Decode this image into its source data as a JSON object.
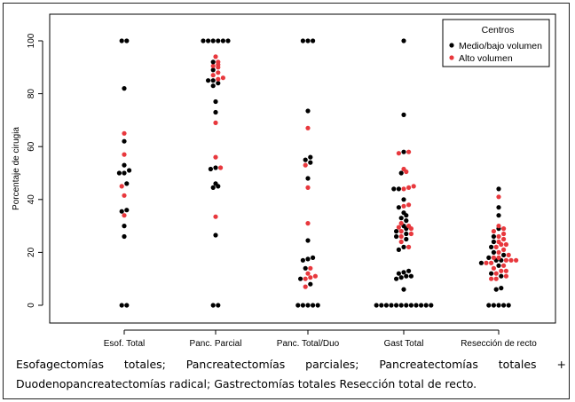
{
  "chart_data": {
    "type": "scatter",
    "ylabel": "Porcentaje de cirugia",
    "ylim": [
      0,
      100
    ],
    "yticks": [
      0,
      20,
      40,
      60,
      80,
      100
    ],
    "categories": [
      "Esof. Total",
      "Panc. Parcial",
      "Panc. Total/Duo",
      "Gast Total",
      "Resección de recto"
    ],
    "legend": {
      "title": "Centros",
      "placement": "top-right",
      "entries": [
        {
          "label": "Medio/bajo volumen",
          "color": "#000000"
        },
        {
          "label": "Alto volumen",
          "color": "#e8383d"
        }
      ]
    },
    "series": [
      {
        "name": "Medio/bajo volumen",
        "color": "#000000",
        "points": [
          [
            0,
            100
          ],
          [
            0,
            100
          ],
          [
            0,
            82
          ],
          [
            0,
            62
          ],
          [
            0,
            53
          ],
          [
            0,
            51
          ],
          [
            0,
            50
          ],
          [
            0,
            50
          ],
          [
            0,
            46
          ],
          [
            0,
            36
          ],
          [
            0,
            35.5
          ],
          [
            0,
            30
          ],
          [
            0,
            26
          ],
          [
            0,
            0
          ],
          [
            0,
            0
          ],
          [
            1,
            100
          ],
          [
            1,
            100
          ],
          [
            1,
            100
          ],
          [
            1,
            100
          ],
          [
            1,
            100
          ],
          [
            1,
            100
          ],
          [
            1,
            92
          ],
          [
            1,
            89
          ],
          [
            1,
            85
          ],
          [
            1,
            85
          ],
          [
            1,
            84
          ],
          [
            1,
            83
          ],
          [
            1,
            77
          ],
          [
            1,
            73
          ],
          [
            1,
            52
          ],
          [
            1,
            51.5
          ],
          [
            1,
            46
          ],
          [
            1,
            45
          ],
          [
            1,
            44.5
          ],
          [
            1,
            26.5
          ],
          [
            1,
            0
          ],
          [
            1,
            0
          ],
          [
            2,
            100
          ],
          [
            2,
            100
          ],
          [
            2,
            100
          ],
          [
            2,
            73.5
          ],
          [
            2,
            56
          ],
          [
            2,
            55
          ],
          [
            2,
            54
          ],
          [
            2,
            48
          ],
          [
            2,
            24.5
          ],
          [
            2,
            18
          ],
          [
            2,
            17.5
          ],
          [
            2,
            17
          ],
          [
            2,
            14
          ],
          [
            2,
            10
          ],
          [
            2,
            8
          ],
          [
            2,
            0
          ],
          [
            2,
            0
          ],
          [
            2,
            0
          ],
          [
            2,
            0
          ],
          [
            2,
            0
          ],
          [
            3,
            100
          ],
          [
            3,
            72
          ],
          [
            3,
            58
          ],
          [
            3,
            50
          ],
          [
            3,
            44
          ],
          [
            3,
            44
          ],
          [
            3,
            40
          ],
          [
            3,
            37
          ],
          [
            3,
            35
          ],
          [
            3,
            34
          ],
          [
            3,
            33
          ],
          [
            3,
            32
          ],
          [
            3,
            30
          ],
          [
            3,
            29
          ],
          [
            3,
            28
          ],
          [
            3,
            27
          ],
          [
            3,
            26
          ],
          [
            3,
            25
          ],
          [
            3,
            22
          ],
          [
            3,
            21
          ],
          [
            3,
            13
          ],
          [
            3,
            12.5
          ],
          [
            3,
            12
          ],
          [
            3,
            11
          ],
          [
            3,
            11
          ],
          [
            3,
            10.5
          ],
          [
            3,
            10
          ],
          [
            3,
            6
          ],
          [
            3,
            0
          ],
          [
            3,
            0
          ],
          [
            3,
            0
          ],
          [
            3,
            0
          ],
          [
            3,
            0
          ],
          [
            3,
            0
          ],
          [
            3,
            0
          ],
          [
            3,
            0
          ],
          [
            3,
            0
          ],
          [
            3,
            0
          ],
          [
            3,
            0
          ],
          [
            3,
            0
          ],
          [
            4,
            44
          ],
          [
            4,
            37
          ],
          [
            4,
            34
          ],
          [
            4,
            29
          ],
          [
            4,
            26
          ],
          [
            4,
            24
          ],
          [
            4,
            22
          ],
          [
            4,
            20
          ],
          [
            4,
            19
          ],
          [
            4,
            18
          ],
          [
            4,
            17
          ],
          [
            4,
            17
          ],
          [
            4,
            16
          ],
          [
            4,
            15
          ],
          [
            4,
            12
          ],
          [
            4,
            11
          ],
          [
            4,
            6.5
          ],
          [
            4,
            6
          ],
          [
            4,
            0
          ],
          [
            4,
            0
          ],
          [
            4,
            0
          ],
          [
            4,
            0
          ],
          [
            4,
            0
          ]
        ]
      },
      {
        "name": "Alto volumen",
        "color": "#e8383d",
        "points": [
          [
            0,
            65
          ],
          [
            0,
            57
          ],
          [
            0,
            45
          ],
          [
            0,
            41.5
          ],
          [
            0,
            34
          ],
          [
            1,
            94
          ],
          [
            1,
            92
          ],
          [
            1,
            91
          ],
          [
            1,
            90.5
          ],
          [
            1,
            90
          ],
          [
            1,
            88
          ],
          [
            1,
            87
          ],
          [
            1,
            86
          ],
          [
            1,
            85.5
          ],
          [
            1,
            69
          ],
          [
            1,
            56
          ],
          [
            1,
            52
          ],
          [
            1,
            33.5
          ],
          [
            2,
            67
          ],
          [
            2,
            53
          ],
          [
            2,
            44.5
          ],
          [
            2,
            31
          ],
          [
            2,
            14
          ],
          [
            2,
            12
          ],
          [
            2,
            11
          ],
          [
            2,
            10.5
          ],
          [
            2,
            10
          ],
          [
            2,
            7
          ],
          [
            3,
            58
          ],
          [
            3,
            57.5
          ],
          [
            3,
            51.5
          ],
          [
            3,
            50.5
          ],
          [
            3,
            45
          ],
          [
            3,
            44.5
          ],
          [
            3,
            44
          ],
          [
            3,
            38
          ],
          [
            3,
            37.5
          ],
          [
            3,
            31
          ],
          [
            3,
            30
          ],
          [
            3,
            29.5
          ],
          [
            3,
            29
          ],
          [
            3,
            28
          ],
          [
            3,
            27
          ],
          [
            3,
            26
          ],
          [
            3,
            24
          ],
          [
            3,
            22
          ],
          [
            4,
            41
          ],
          [
            4,
            30
          ],
          [
            4,
            29
          ],
          [
            4,
            28
          ],
          [
            4,
            27
          ],
          [
            4,
            26
          ],
          [
            4,
            25
          ],
          [
            4,
            24
          ],
          [
            4,
            23
          ],
          [
            4,
            23
          ],
          [
            4,
            22
          ],
          [
            4,
            21
          ],
          [
            4,
            20
          ],
          [
            4,
            19
          ],
          [
            4,
            18
          ],
          [
            4,
            18
          ],
          [
            4,
            17
          ],
          [
            4,
            17
          ],
          [
            4,
            17
          ],
          [
            4,
            16
          ],
          [
            4,
            16
          ],
          [
            4,
            15
          ],
          [
            4,
            14
          ],
          [
            4,
            13
          ],
          [
            4,
            13
          ],
          [
            4,
            12
          ],
          [
            4,
            11
          ],
          [
            4,
            10
          ],
          [
            4,
            10
          ]
        ]
      }
    ]
  },
  "caption": {
    "line1_words": [
      "Esofagectomías",
      "totales;",
      "Pancreatectomías",
      "parciales;",
      "Pancreatectomías",
      "totales",
      "+"
    ],
    "line2": "Duodenopancreatectomías radical; Gastrectomías totales Resección total de recto."
  }
}
